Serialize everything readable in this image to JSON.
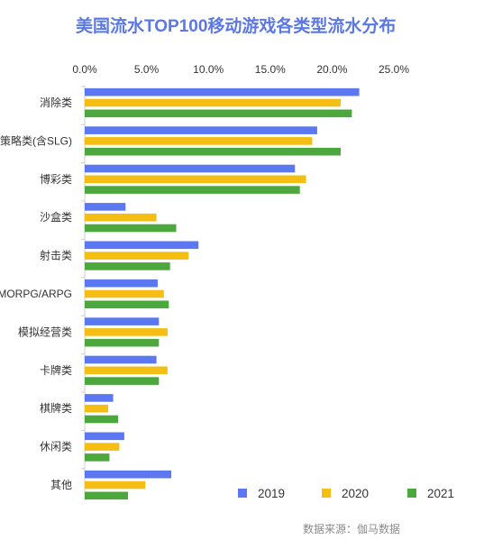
{
  "chart_data": {
    "type": "bar",
    "orientation": "horizontal",
    "title": "美国流水TOP100移动游戏各类型流水分布",
    "categories": [
      "消除类",
      "策略类(含SLG)",
      "博彩类",
      "沙盒类",
      "射击类",
      "MMORPG/ARPG",
      "模拟经营类",
      "卡牌类",
      "棋牌类",
      "休闲类",
      "其他"
    ],
    "series": [
      {
        "name": "2019",
        "color": "#5B78F0",
        "values": [
          22.2,
          18.8,
          17.0,
          3.3,
          9.2,
          5.9,
          6.0,
          5.8,
          2.3,
          3.2,
          7.0
        ]
      },
      {
        "name": "2020",
        "color": "#F5BE14",
        "values": [
          20.7,
          18.4,
          17.9,
          5.8,
          8.4,
          6.4,
          6.7,
          6.7,
          1.9,
          2.8,
          4.9
        ]
      },
      {
        "name": "2021",
        "color": "#4CA83C",
        "values": [
          21.6,
          20.7,
          17.4,
          7.4,
          6.9,
          6.8,
          6.0,
          6.0,
          2.7,
          2.0,
          3.5
        ]
      }
    ],
    "xlim": [
      0,
      25
    ],
    "xticks": [
      "0.0%",
      "5.0%",
      "10.0%",
      "15.0%",
      "20.0%",
      "25.0%"
    ],
    "xtick_values": [
      0,
      5,
      10,
      15,
      20,
      25
    ],
    "x_axis_position": "top",
    "legend_position": "bottom-right",
    "grid": false
  },
  "legend": [
    {
      "label": "2019",
      "color": "#5B78F0"
    },
    {
      "label": "2020",
      "color": "#F5BE14"
    },
    {
      "label": "2021",
      "color": "#4CA83C"
    }
  ],
  "source_note": "数据来源：伽马数据"
}
